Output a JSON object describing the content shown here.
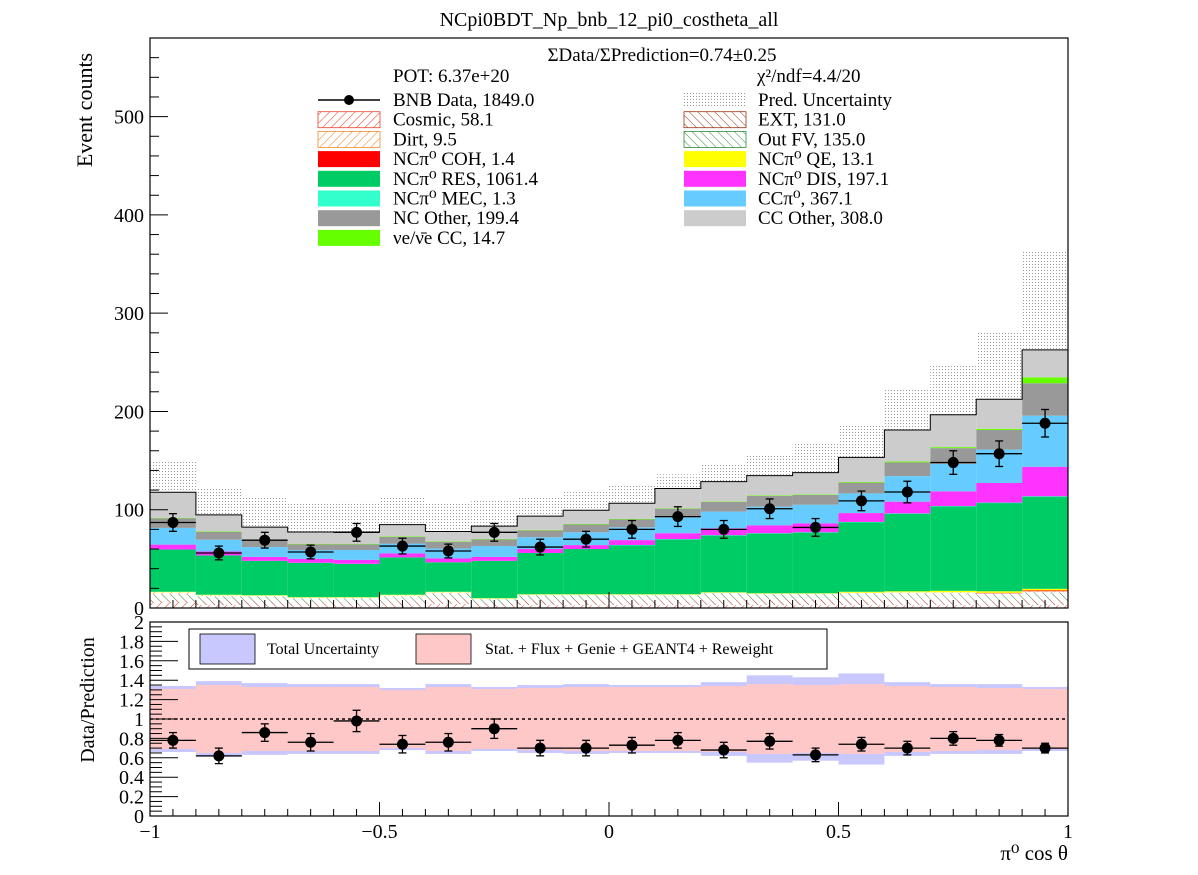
{
  "chart_data": [
    {
      "type": "bar",
      "stacked": true,
      "title": "NCpi0BDT_Np_bnb_12_pi0_costheta_all",
      "ylabel": "Event counts",
      "xlabel": "",
      "xlim": [
        -1,
        1
      ],
      "ylim": [
        0,
        580
      ],
      "yticks": [
        0,
        100,
        200,
        300,
        400,
        500
      ],
      "xticks": [
        -1,
        -0.5,
        0,
        0.5,
        1
      ],
      "bin_edges": [
        -1.0,
        -0.9,
        -0.8,
        -0.7,
        -0.6,
        -0.5,
        -0.4,
        -0.3,
        -0.2,
        -0.1,
        0.0,
        0.1,
        0.2,
        0.3,
        0.4,
        0.5,
        0.6,
        0.7,
        0.8,
        0.9,
        1.0
      ],
      "summary": {
        "ratio_text": "ΣData/ΣPrediction=0.74±0.25",
        "pot_text": "POT: 6.37e+20",
        "chi2_text": "χ²/ndf=4.4/20"
      },
      "legend_columns": [
        [
          {
            "label": "BNB Data, 1849.0",
            "kind": "marker",
            "color": "#000000"
          },
          {
            "label": "Cosmic, 58.1",
            "kind": "hatch",
            "color": "#e8432a"
          },
          {
            "label": "Dirt, 9.5",
            "kind": "hatch",
            "color": "#f08a2a"
          },
          {
            "label": "NCπ⁰ COH,  1.4",
            "kind": "fill",
            "color": "#ff0000"
          },
          {
            "label": "NCπ⁰ RES,  1061.4",
            "kind": "fill",
            "color": "#00cc66"
          },
          {
            "label": "NCπ⁰ MEC,  1.3",
            "kind": "fill",
            "color": "#33ffcc"
          },
          {
            "label": "NC Other, 199.4",
            "kind": "fill",
            "color": "#999999"
          },
          {
            "label": "νe/ν̄e CC, 14.7",
            "kind": "fill",
            "color": "#66ff00"
          }
        ],
        [
          {
            "label": "Pred. Uncertainty",
            "kind": "dots",
            "color": "#bbbbbb"
          },
          {
            "label": "EXT, 131.0",
            "kind": "hatch",
            "color": "#993311"
          },
          {
            "label": "Out FV, 135.0",
            "kind": "hatch",
            "color": "#2e8b3a"
          },
          {
            "label": "NCπ⁰ QE,  13.1",
            "kind": "fill",
            "color": "#ffff00"
          },
          {
            "label": "NCπ⁰ DIS,  197.1",
            "kind": "fill",
            "color": "#ff33ff"
          },
          {
            "label": "CCπ⁰, 367.1",
            "kind": "fill",
            "color": "#66ccff"
          },
          {
            "label": "CC Other, 308.0",
            "kind": "fill",
            "color": "#cccccc"
          }
        ]
      ],
      "series": [
        {
          "name": "Cosmic, 58.1",
          "color": "#e8432a",
          "hatch": true,
          "values": [
            5,
            3,
            2,
            2,
            2,
            2,
            4,
            2,
            3,
            3,
            3,
            3,
            3,
            3,
            3,
            3,
            3,
            3,
            2,
            3
          ]
        },
        {
          "name": "EXT, 131.0",
          "color": "#993311",
          "hatch": true,
          "values": [
            3,
            4,
            5,
            4,
            4,
            5,
            6,
            3,
            5,
            5,
            5,
            5,
            6,
            6,
            6,
            6,
            6,
            6,
            5,
            6
          ]
        },
        {
          "name": "Out FV, 135.0",
          "color": "#2e8b3a",
          "hatch": true,
          "values": [
            6,
            5,
            5,
            4,
            4,
            5,
            5,
            4,
            5,
            5,
            5,
            5,
            6,
            5,
            5,
            6,
            6,
            6,
            7,
            7
          ]
        },
        {
          "name": "Dirt, 9.5",
          "color": "#f08a2a",
          "hatch": true,
          "values": [
            2,
            1,
            0.5,
            0.5,
            0.5,
            1,
            1,
            0.5,
            0.5,
            0.5,
            0.5,
            0.5,
            0.5,
            0.5,
            0.5,
            0.5,
            1,
            1,
            1,
            1
          ]
        },
        {
          "name": "NCπ⁰ COH,  1.4",
          "color": "#ff0000",
          "values": [
            0,
            0,
            0,
            0,
            0,
            0,
            0,
            0,
            0,
            0,
            0,
            0,
            0,
            0,
            0,
            0,
            0,
            0,
            0.5,
            0.9
          ]
        },
        {
          "name": "NCπ⁰ QE,  13.1",
          "color": "#ffff00",
          "values": [
            0.5,
            0.5,
            0.5,
            0.5,
            0.5,
            0.5,
            0.5,
            0.5,
            0.5,
            0.5,
            0.5,
            0.5,
            0.5,
            0.5,
            0.5,
            1,
            1,
            1.5,
            1.5,
            1.6
          ]
        },
        {
          "name": "NCπ⁰ RES,  1061.4",
          "color": "#00cc66",
          "values": [
            43,
            40,
            35,
            35,
            34,
            38,
            30,
            38,
            42,
            46,
            50,
            56,
            58,
            61,
            62,
            71,
            79,
            86,
            90,
            94
          ]
        },
        {
          "name": "NCπ⁰ MEC,  1.3",
          "color": "#33ffcc",
          "values": [
            0,
            0,
            0,
            0,
            0,
            0,
            0,
            0,
            0,
            0,
            0.1,
            0.1,
            0.1,
            0.1,
            0.1,
            0.1,
            0.2,
            0.2,
            0.2,
            0.2
          ]
        },
        {
          "name": "NCπ⁰ DIS,  197.1",
          "color": "#ff33ff",
          "values": [
            5,
            4,
            4,
            4,
            4,
            4,
            4,
            4,
            4,
            4,
            5,
            6,
            7,
            8,
            9,
            9,
            12,
            15,
            20,
            30
          ]
        },
        {
          "name": "CCπ⁰, 367.1",
          "color": "#66ccff",
          "values": [
            17,
            12,
            10,
            9,
            10,
            10,
            10,
            11,
            12,
            13,
            13,
            16,
            17,
            19,
            19,
            20,
            26,
            28,
            34,
            52
          ]
        },
        {
          "name": "NC Other, 199.4",
          "color": "#999999",
          "values": [
            10,
            8,
            7,
            6,
            6,
            7,
            7,
            7,
            7,
            8,
            8,
            9,
            10,
            11,
            10,
            11,
            14,
            16,
            20,
            33
          ]
        },
        {
          "name": "νe/ν̄e CC, 14.7",
          "color": "#66ff00",
          "values": [
            0.3,
            0.3,
            0.3,
            0.3,
            0.3,
            0.3,
            0.3,
            0.3,
            0.5,
            0.5,
            0.5,
            0.5,
            0.5,
            0.6,
            0.6,
            0.7,
            0.9,
            1,
            1.2,
            6
          ]
        },
        {
          "name": "CC Other, 308.0",
          "color": "#cccccc",
          "values": [
            26,
            17,
            13,
            12,
            12,
            12,
            10,
            13,
            14,
            14,
            16,
            20,
            20,
            20,
            22,
            25,
            32,
            33,
            30,
            28
          ]
        }
      ],
      "pred_uncertainty_upper": [
        150,
        122,
        112,
        107,
        108,
        112,
        106,
        110,
        113,
        118,
        125,
        136,
        146,
        155,
        169,
        187,
        223,
        248,
        281,
        363
      ],
      "data": {
        "name": "BNB Data, 1849.0",
        "values": [
          87,
          56,
          69,
          57,
          77,
          63,
          58,
          77,
          62,
          70,
          80,
          93,
          80,
          101,
          82,
          109,
          118,
          148,
          157,
          188
        ],
        "errors": [
          9,
          7,
          8,
          7,
          9,
          8,
          7,
          9,
          8,
          8,
          9,
          10,
          9,
          10,
          9,
          10,
          11,
          12,
          13,
          14
        ]
      }
    },
    {
      "type": "scatter",
      "ylabel": "Data/Prediction",
      "xlabel": "π⁰ cos θ",
      "xlim": [
        -1,
        1
      ],
      "ylim": [
        0,
        2
      ],
      "yticks": [
        0,
        0.2,
        0.4,
        0.6,
        0.8,
        1,
        1.2,
        1.4,
        1.6,
        1.8,
        2
      ],
      "xticks": [
        -1,
        -0.5,
        0,
        0.5,
        1
      ],
      "xtick_labels": [
        "−1",
        "−0.5",
        "0",
        "0.5",
        "1"
      ],
      "reference_line": 1,
      "legend": [
        {
          "label": "Total Uncertainty",
          "color": "#c8c8ff"
        },
        {
          "label": "Stat. + Flux + Genie + GEANT4 + Reweight",
          "color": "#ffc8c8"
        }
      ],
      "total_unc_half": [
        0.34,
        0.39,
        0.37,
        0.36,
        0.36,
        0.32,
        0.36,
        0.33,
        0.35,
        0.36,
        0.35,
        0.35,
        0.38,
        0.45,
        0.43,
        0.47,
        0.38,
        0.36,
        0.36,
        0.33
      ],
      "syst_unc_half": [
        0.31,
        0.35,
        0.33,
        0.33,
        0.33,
        0.3,
        0.33,
        0.31,
        0.32,
        0.33,
        0.33,
        0.33,
        0.34,
        0.36,
        0.35,
        0.36,
        0.34,
        0.33,
        0.32,
        0.31
      ],
      "ratio": [
        0.78,
        0.62,
        0.86,
        0.76,
        0.98,
        0.74,
        0.76,
        0.9,
        0.7,
        0.7,
        0.73,
        0.78,
        0.68,
        0.77,
        0.63,
        0.74,
        0.7,
        0.8,
        0.78,
        0.7
      ],
      "ratio_err": [
        0.08,
        0.08,
        0.09,
        0.09,
        0.11,
        0.09,
        0.09,
        0.1,
        0.08,
        0.08,
        0.08,
        0.08,
        0.08,
        0.08,
        0.07,
        0.07,
        0.07,
        0.07,
        0.06,
        0.05
      ]
    }
  ]
}
